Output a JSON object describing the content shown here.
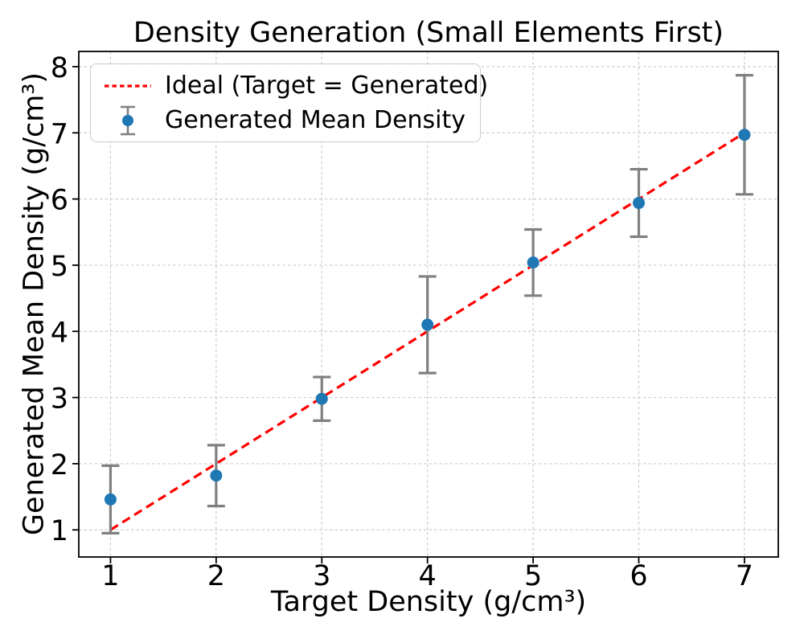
{
  "figure": {
    "title": "Density Generation (Small Elements First)"
  },
  "chart_data": {
    "type": "scatter",
    "title": "Density Generation (Small Elements First)",
    "xlabel": "Target Density (g/cm³)",
    "ylabel": "Generated Mean Density (g/cm³)",
    "xlim": [
      0.7,
      7.32
    ],
    "ylim": [
      0.59,
      8.23
    ],
    "x_ticks": [
      1,
      2,
      3,
      4,
      5,
      6,
      7
    ],
    "y_ticks": [
      1,
      2,
      3,
      4,
      5,
      6,
      7,
      8
    ],
    "grid": true,
    "grid_style": "dashed",
    "legend_position": "upper left",
    "colors": {
      "ideal_line": "#ff0000",
      "marker": "#1f77b4",
      "errorbar": "#808080",
      "gridline": "#cdcdcd",
      "spine": "#000000",
      "text": "#000000"
    },
    "series": [
      {
        "name": "Ideal (Target = Generated)",
        "type": "line",
        "style": "dashed",
        "color": "#ff0000",
        "x": [
          1,
          7
        ],
        "y": [
          1,
          7
        ]
      },
      {
        "name": "Generated Mean Density",
        "type": "errorbar_scatter",
        "marker_color": "#1f77b4",
        "errorbar_color": "#808080",
        "x": [
          1,
          2,
          3,
          4,
          5,
          6,
          7
        ],
        "y": [
          1.46,
          1.82,
          2.98,
          4.1,
          5.04,
          5.94,
          6.97
        ],
        "yerr": [
          0.51,
          0.46,
          0.33,
          0.73,
          0.5,
          0.51,
          0.9
        ]
      }
    ]
  },
  "legend": {
    "items": [
      {
        "label": "Ideal (Target = Generated)",
        "swatch": "red-dashed-line"
      },
      {
        "label": "Generated Mean Density",
        "swatch": "blue-dot-with-errorbar"
      }
    ]
  }
}
